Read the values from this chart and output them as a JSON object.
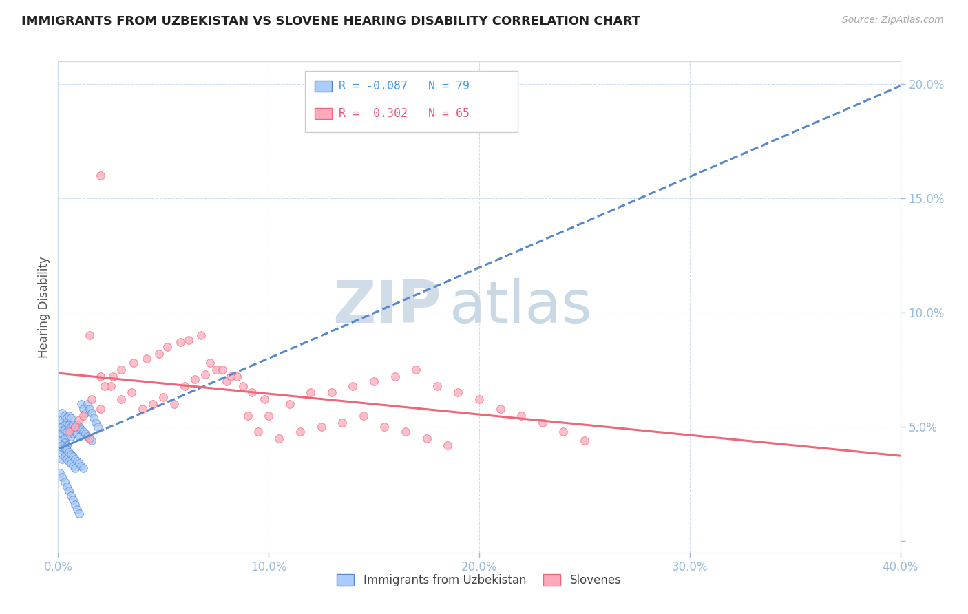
{
  "title": "IMMIGRANTS FROM UZBEKISTAN VS SLOVENE HEARING DISABILITY CORRELATION CHART",
  "source_text": "Source: ZipAtlas.com",
  "ylabel": "Hearing Disability",
  "legend_label_1": "Immigrants from Uzbekistan",
  "legend_label_2": "Slovenes",
  "R1": -0.087,
  "N1": 79,
  "R2": 0.302,
  "N2": 65,
  "color_uzbek": "#aaccff",
  "color_slovene": "#ffaabb",
  "line_color_uzbek": "#5588cc",
  "line_color_slovene": "#ee6677",
  "watermark_zip": "ZIP",
  "watermark_atlas": "atlas",
  "xlim": [
    0.0,
    0.4
  ],
  "ylim": [
    -0.005,
    0.21
  ],
  "x_ticks": [
    0.0,
    0.1,
    0.2,
    0.3,
    0.4
  ],
  "x_tick_labels": [
    "0.0%",
    "10.0%",
    "20.0%",
    "30.0%",
    "40.0%"
  ],
  "y_ticks": [
    0.0,
    0.05,
    0.1,
    0.15,
    0.2
  ],
  "y_tick_labels": [
    "",
    "5.0%",
    "10.0%",
    "15.0%",
    "20.0%"
  ],
  "uzbek_x": [
    0.001,
    0.001,
    0.001,
    0.001,
    0.002,
    0.002,
    0.002,
    0.002,
    0.002,
    0.003,
    0.003,
    0.003,
    0.003,
    0.003,
    0.004,
    0.004,
    0.004,
    0.004,
    0.005,
    0.005,
    0.005,
    0.005,
    0.006,
    0.006,
    0.006,
    0.007,
    0.007,
    0.007,
    0.008,
    0.008,
    0.009,
    0.009,
    0.01,
    0.01,
    0.011,
    0.012,
    0.013,
    0.014,
    0.015,
    0.016,
    0.001,
    0.001,
    0.002,
    0.002,
    0.003,
    0.003,
    0.004,
    0.004,
    0.005,
    0.005,
    0.006,
    0.006,
    0.007,
    0.007,
    0.008,
    0.008,
    0.009,
    0.01,
    0.011,
    0.012,
    0.001,
    0.002,
    0.003,
    0.004,
    0.005,
    0.006,
    0.007,
    0.008,
    0.009,
    0.01,
    0.011,
    0.012,
    0.013,
    0.014,
    0.015,
    0.016,
    0.017,
    0.018,
    0.019
  ],
  "uzbek_y": [
    0.05,
    0.048,
    0.052,
    0.046,
    0.05,
    0.053,
    0.047,
    0.044,
    0.056,
    0.051,
    0.049,
    0.045,
    0.055,
    0.043,
    0.052,
    0.048,
    0.054,
    0.042,
    0.051,
    0.049,
    0.047,
    0.055,
    0.05,
    0.046,
    0.054,
    0.049,
    0.051,
    0.047,
    0.05,
    0.048,
    0.051,
    0.047,
    0.05,
    0.046,
    0.049,
    0.048,
    0.047,
    0.046,
    0.045,
    0.044,
    0.04,
    0.038,
    0.042,
    0.036,
    0.041,
    0.037,
    0.04,
    0.036,
    0.039,
    0.035,
    0.038,
    0.034,
    0.037,
    0.033,
    0.036,
    0.032,
    0.035,
    0.034,
    0.033,
    0.032,
    0.03,
    0.028,
    0.026,
    0.024,
    0.022,
    0.02,
    0.018,
    0.016,
    0.014,
    0.012,
    0.06,
    0.058,
    0.056,
    0.06,
    0.058,
    0.056,
    0.054,
    0.052,
    0.05
  ],
  "slovene_x": [
    0.005,
    0.01,
    0.015,
    0.02,
    0.015,
    0.02,
    0.025,
    0.03,
    0.035,
    0.04,
    0.045,
    0.05,
    0.055,
    0.06,
    0.065,
    0.07,
    0.075,
    0.08,
    0.085,
    0.09,
    0.095,
    0.1,
    0.11,
    0.12,
    0.13,
    0.14,
    0.15,
    0.16,
    0.17,
    0.18,
    0.19,
    0.2,
    0.21,
    0.22,
    0.23,
    0.24,
    0.25,
    0.008,
    0.012,
    0.016,
    0.022,
    0.026,
    0.03,
    0.036,
    0.042,
    0.048,
    0.052,
    0.058,
    0.062,
    0.068,
    0.072,
    0.078,
    0.082,
    0.088,
    0.092,
    0.098,
    0.105,
    0.115,
    0.125,
    0.135,
    0.145,
    0.155,
    0.165,
    0.175,
    0.185
  ],
  "slovene_y": [
    0.048,
    0.053,
    0.045,
    0.058,
    0.09,
    0.072,
    0.068,
    0.062,
    0.065,
    0.058,
    0.06,
    0.063,
    0.06,
    0.068,
    0.071,
    0.073,
    0.075,
    0.07,
    0.072,
    0.055,
    0.048,
    0.055,
    0.06,
    0.065,
    0.065,
    0.068,
    0.07,
    0.072,
    0.075,
    0.068,
    0.065,
    0.062,
    0.058,
    0.055,
    0.052,
    0.048,
    0.044,
    0.05,
    0.055,
    0.062,
    0.068,
    0.072,
    0.075,
    0.078,
    0.08,
    0.082,
    0.085,
    0.087,
    0.088,
    0.09,
    0.078,
    0.075,
    0.072,
    0.068,
    0.065,
    0.062,
    0.045,
    0.048,
    0.05,
    0.052,
    0.055,
    0.05,
    0.048,
    0.045,
    0.042
  ],
  "slovene_outlier_x": [
    0.02
  ],
  "slovene_outlier_y": [
    0.16
  ]
}
